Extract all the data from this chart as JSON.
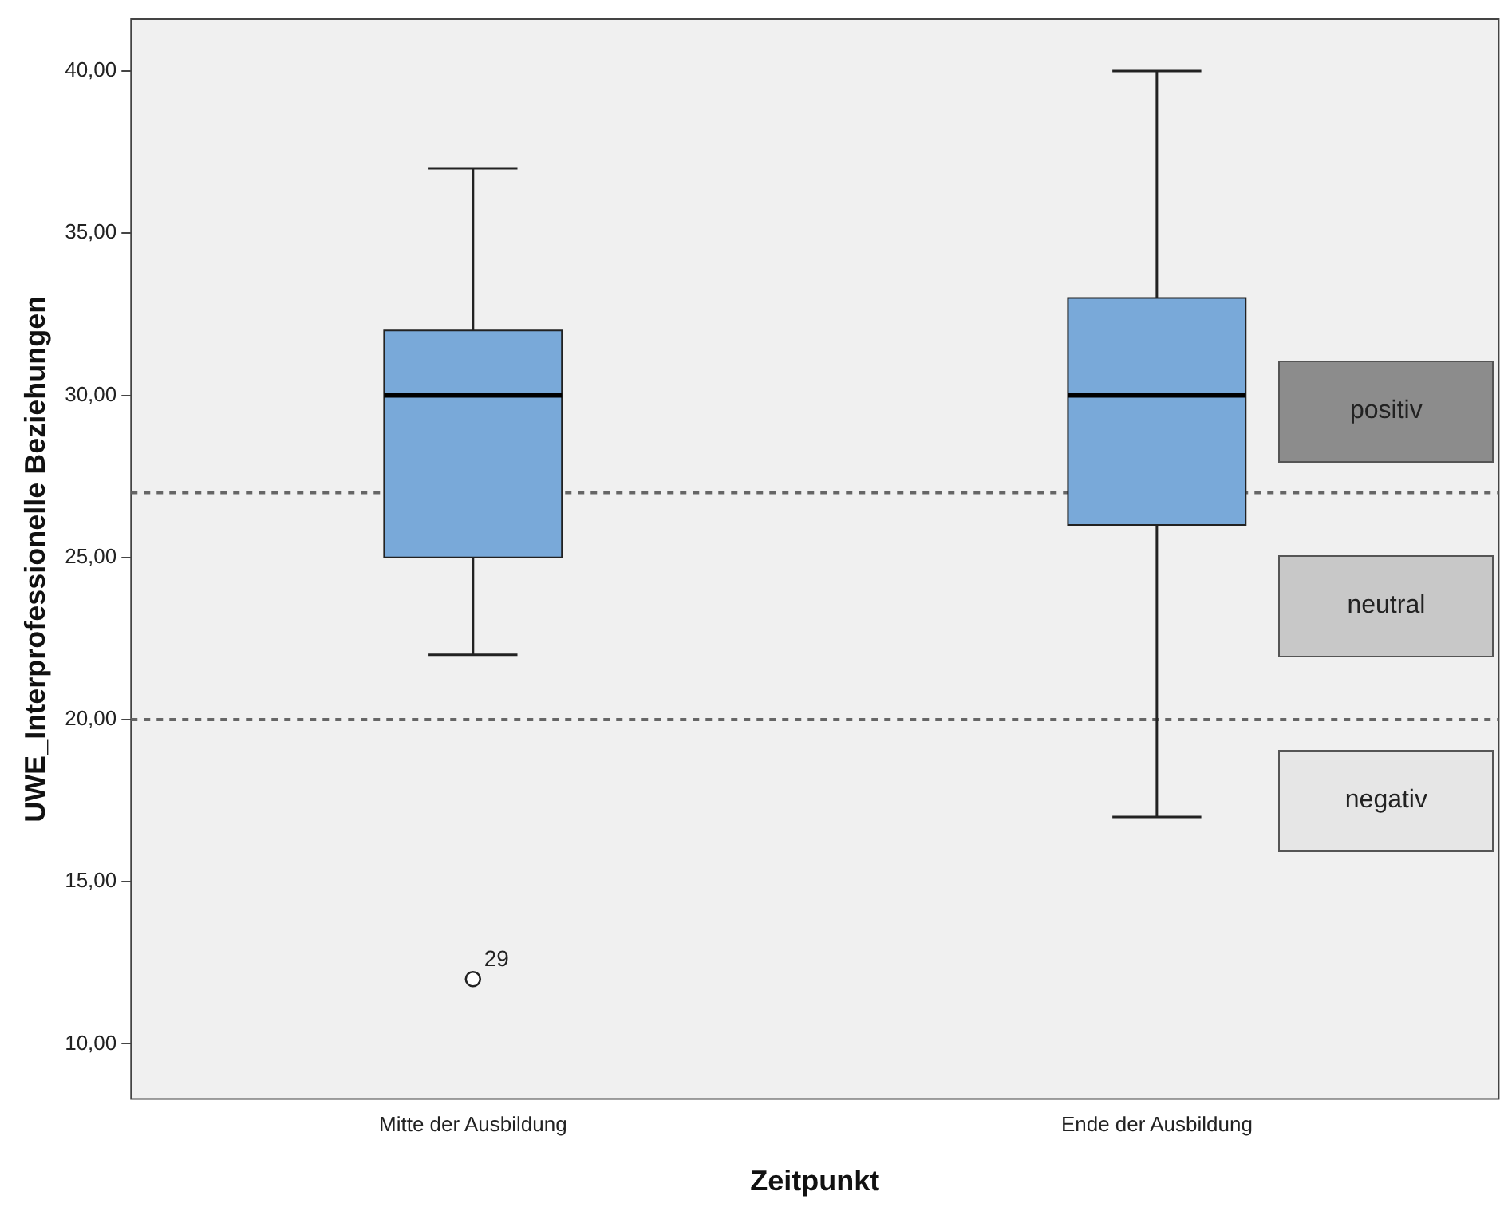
{
  "chart_data": {
    "type": "box",
    "xlabel": "Zeitpunkt",
    "ylabel": "UWE_Interprofessionelle Beziehungen",
    "categories": [
      "Mitte der Ausbildung",
      "Ende der Ausbildung"
    ],
    "color": "#79a9d9",
    "boxes": [
      {
        "low": 22,
        "q1": 25,
        "median": 30,
        "q3": 32,
        "high": 37,
        "outliers": [
          12
        ]
      },
      {
        "low": 17,
        "q1": 26,
        "median": 30,
        "q3": 33,
        "high": 40
      }
    ],
    "ylim": [
      8.3,
      41.6
    ],
    "yticks": [
      {
        "value": 10,
        "label": "10,00"
      },
      {
        "value": 15,
        "label": "15,00"
      },
      {
        "value": 20,
        "label": "20,00"
      },
      {
        "value": 25,
        "label": "25,00"
      },
      {
        "value": 30,
        "label": "30,00"
      },
      {
        "value": 35,
        "label": "35,00"
      },
      {
        "value": 40,
        "label": "40,00"
      }
    ],
    "ref_lines": [
      {
        "axis": "y",
        "value": 27,
        "line_style": "dashed"
      },
      {
        "axis": "y",
        "value": 20,
        "line_style": "dashed"
      }
    ],
    "annotations": [
      "29",
      "positiv",
      "neutral",
      "negativ"
    ],
    "grid": false,
    "legend": false
  }
}
